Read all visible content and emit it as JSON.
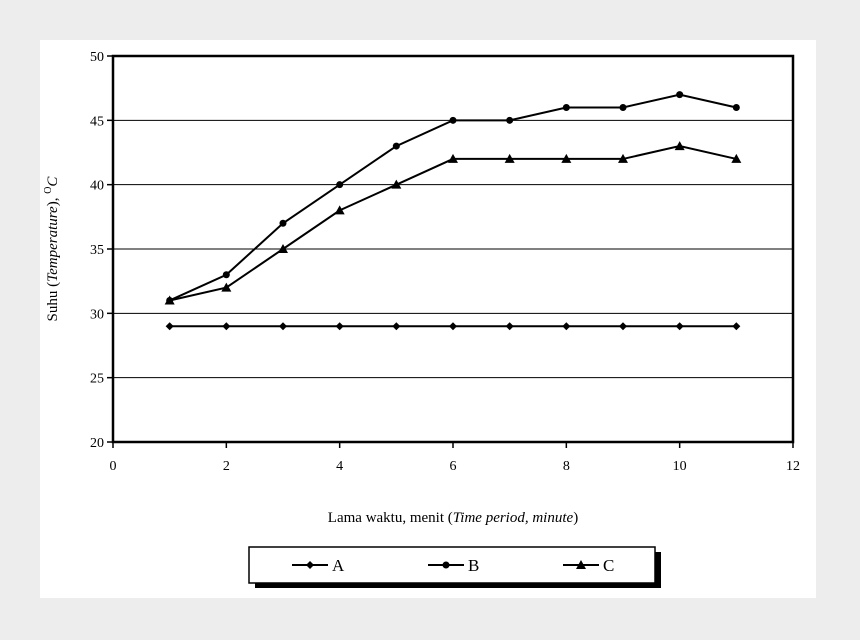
{
  "chart_data": {
    "type": "line",
    "xlabel_prefix": "Lama waktu, menit (",
    "xlabel_italic": "Time period, minute",
    "xlabel_suffix": ")",
    "ylabel_prefix": "Suhu (",
    "ylabel_italic": "Temperature",
    "ylabel_suffix": "), ",
    "ylabel_unit_sup": "O",
    "ylabel_unit": "C",
    "xlim": [
      0,
      12
    ],
    "ylim": [
      20,
      50
    ],
    "xticks": [
      "0",
      "2",
      "4",
      "6",
      "8",
      "10",
      "12"
    ],
    "yticks": [
      "20",
      "25",
      "30",
      "35",
      "40",
      "45",
      "50"
    ],
    "grid": "horizontal",
    "legend_position": "bottom",
    "x": [
      1,
      2,
      3,
      4,
      5,
      6,
      7,
      8,
      9,
      10,
      11
    ],
    "series": [
      {
        "name": "A",
        "marker": "diamond",
        "values": [
          29,
          29,
          29,
          29,
          29,
          29,
          29,
          29,
          29,
          29,
          29
        ]
      },
      {
        "name": "B",
        "marker": "circle",
        "values": [
          31,
          33,
          37,
          40,
          43,
          45,
          45,
          46,
          46,
          47,
          46
        ]
      },
      {
        "name": "C",
        "marker": "triangle",
        "values": [
          31,
          32,
          35,
          38,
          40,
          42,
          42,
          42,
          42,
          43,
          42
        ]
      }
    ]
  }
}
